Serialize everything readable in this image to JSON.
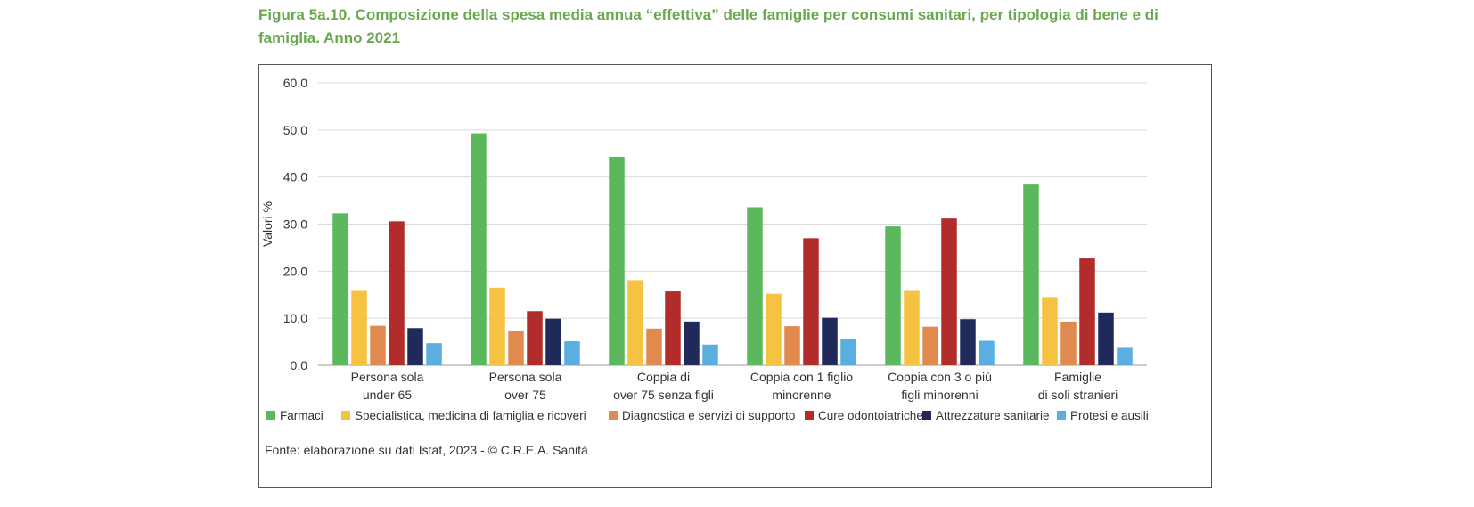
{
  "figure": {
    "title": "Figura 5a.10. Composizione della spesa media annua “effettiva” delle famiglie per consumi sanitari, per tipologia di bene e di famiglia. Anno 2021",
    "source": "Fonte: elaborazione su dati Istat, 2023 - © C.R.E.A. Sanità"
  },
  "chart_data": {
    "type": "bar",
    "title": "",
    "xlabel": "",
    "ylabel": "Valori %",
    "ylim": [
      0,
      60
    ],
    "yticks": [
      "0,0",
      "10,0",
      "20,0",
      "30,0",
      "40,0",
      "50,0",
      "60,0"
    ],
    "grid": true,
    "legend_position": "bottom",
    "categories": [
      [
        "Persona sola",
        "under 65"
      ],
      [
        "Persona sola",
        "over 75"
      ],
      [
        "Coppia di",
        "over 75 senza figli"
      ],
      [
        "Coppia con 1 figlio",
        "minorenne"
      ],
      [
        "Coppia con 3 o più",
        "figli minorenni"
      ],
      [
        "Famiglie",
        "di soli stranieri"
      ]
    ],
    "series": [
      {
        "name": "Farmaci",
        "color": "#5cb85c",
        "values": [
          32.3,
          49.3,
          44.3,
          33.6,
          29.5,
          38.4
        ]
      },
      {
        "name": "Specialistica, medicina di famiglia e ricoveri",
        "color": "#f5c242",
        "values": [
          15.8,
          16.5,
          18.1,
          15.2,
          15.8,
          14.5
        ]
      },
      {
        "name": "Diagnostica e servizi di supporto",
        "color": "#e08a4f",
        "values": [
          8.4,
          7.3,
          7.8,
          8.3,
          8.2,
          9.3
        ]
      },
      {
        "name": "Cure odontoiatriche",
        "color": "#b32c2c",
        "values": [
          30.6,
          11.5,
          15.7,
          27.0,
          31.2,
          22.7
        ]
      },
      {
        "name": "Attrezzature sanitarie",
        "color": "#1f2a5a",
        "values": [
          7.9,
          9.9,
          9.3,
          10.1,
          9.8,
          11.2
        ]
      },
      {
        "name": "Protesi e ausili",
        "color": "#5aaee0",
        "values": [
          4.7,
          5.1,
          4.4,
          5.5,
          5.2,
          3.9
        ]
      }
    ]
  }
}
